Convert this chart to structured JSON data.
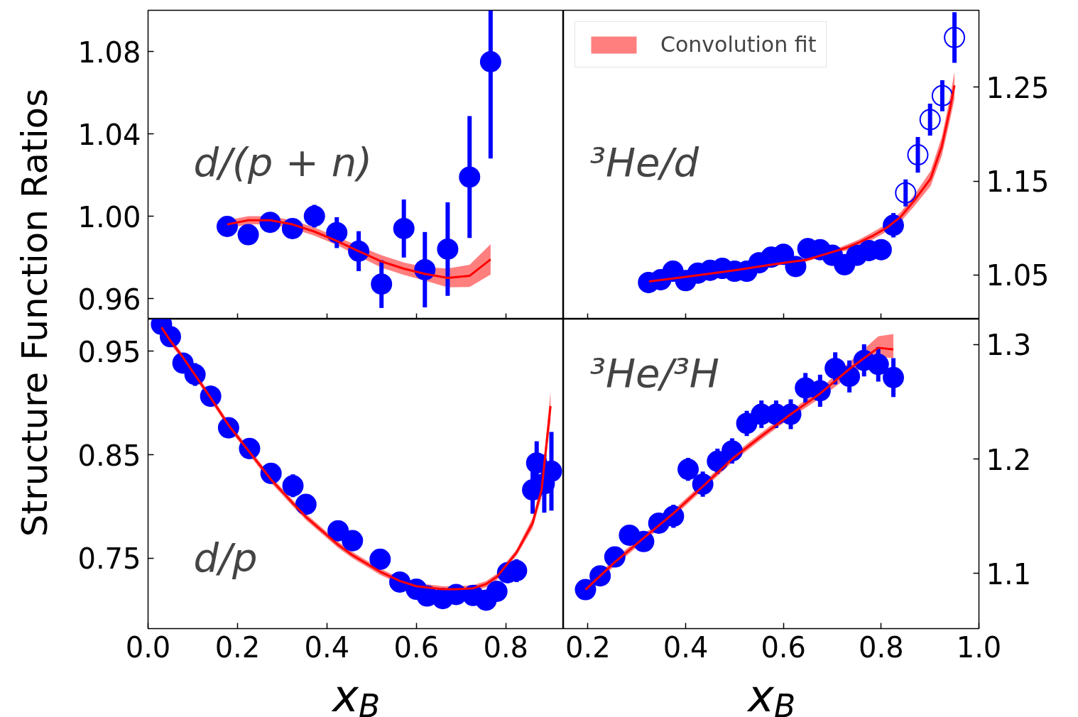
{
  "chart_data": [
    {
      "type": "scatter",
      "ylabel": "Structure Function Ratios",
      "annotations": [
        "d/(p + n)"
      ],
      "xlim": [
        0,
        0.929
      ],
      "ylim": [
        0.95,
        1.1
      ],
      "xticks": [
        0.2,
        0.4,
        0.6,
        0.8
      ],
      "yticks": [
        0.96,
        {
          "value": 1.0,
          "label": "1.00"
        },
        1.04,
        1.08
      ],
      "tick_labels": "y",
      "series": [
        {
          "type": "line",
          "color": "#ff0000",
          "x": [
            0.177,
            0.224,
            0.273,
            0.323,
            0.372,
            0.422,
            0.471,
            0.522,
            0.572,
            0.619,
            0.67,
            0.719,
            0.766
          ],
          "values": [
            0.996,
            0.998,
            0.998,
            0.996,
            0.9925,
            0.988,
            0.983,
            0.978,
            0.9745,
            0.972,
            0.97,
            0.971,
            0.979
          ],
          "lower": [
            0.994,
            0.996,
            0.996,
            0.994,
            0.9905,
            0.986,
            0.9805,
            0.975,
            0.9715,
            0.9687,
            0.9654,
            0.9656,
            0.9716
          ],
          "upper": [
            0.998,
            1.0,
            1.0,
            0.998,
            0.9945,
            0.99,
            0.9855,
            0.981,
            0.9775,
            0.9753,
            0.9746,
            0.9764,
            0.9864
          ]
        },
        {
          "type": "scatter",
          "color": "#0000ff",
          "marker": "circle",
          "x": [
            0.177,
            0.224,
            0.273,
            0.323,
            0.372,
            0.422,
            0.471,
            0.522,
            0.572,
            0.619,
            0.67,
            0.719,
            0.766
          ],
          "values": [
            0.995,
            0.991,
            0.997,
            0.994,
            1.0,
            0.992,
            0.983,
            0.967,
            0.994,
            0.974,
            0.984,
            1.019,
            1.075
          ],
          "errors": [
            0.002,
            0.002,
            0.002,
            0.0045,
            0.0055,
            0.0075,
            0.0097,
            0.0116,
            0.0141,
            0.0183,
            0.0227,
            0.0296,
            [
              1.028,
              1.1
            ]
          ]
        }
      ]
    },
    {
      "type": "scatter",
      "annotations": [
        "³He/d"
      ],
      "xlim": [
        0.15,
        1.0
      ],
      "y2lim": [
        1.003,
        1.332
      ],
      "xticks": [
        0.2,
        0.4,
        0.6,
        0.8
      ],
      "y2ticks": [
        1.05,
        1.15,
        1.25
      ],
      "tick_labels": "y",
      "legend": "top left",
      "series": [
        {
          "type": "line",
          "axis": "y2",
          "name": "Convolution fit",
          "color": "#ff0000",
          "x": [
            0.325,
            0.4,
            0.5,
            0.6,
            0.645,
            0.701,
            0.728,
            0.756,
            0.784,
            0.812,
            0.84,
            0.868,
            0.901,
            0.924,
            0.94,
            0.95
          ],
          "values": [
            1.043,
            1.048,
            1.055,
            1.063,
            1.066,
            1.0746,
            1.079,
            1.085,
            1.092,
            1.1006,
            1.112,
            1.1295,
            1.1526,
            1.187,
            1.225,
            1.252
          ],
          "lower": [
            1.041,
            1.046,
            1.053,
            1.061,
            1.064,
            1.0726,
            1.076,
            1.082,
            1.088,
            1.0966,
            1.107,
            1.1235,
            1.1446,
            1.177,
            1.213,
            1.2375
          ],
          "upper": [
            1.045,
            1.05,
            1.057,
            1.065,
            1.068,
            1.0766,
            1.082,
            1.088,
            1.096,
            1.1046,
            1.117,
            1.1355,
            1.1606,
            1.197,
            1.237,
            1.2665
          ]
        },
        {
          "type": "scatter",
          "axis": "y2",
          "color": "#0000ff",
          "marker": "circle",
          "x": [
            0.324,
            0.349,
            0.374,
            0.4,
            0.425,
            0.45,
            0.475,
            0.5,
            0.525,
            0.55,
            0.575,
            0.6,
            0.625,
            0.65,
            0.675,
            0.7,
            0.725,
            0.75,
            0.775,
            0.8,
            0.825
          ],
          "values": [
            1.042,
            1.045,
            1.054,
            1.044,
            1.052,
            1.055,
            1.057,
            1.054,
            1.054,
            1.063,
            1.069,
            1.072,
            1.059,
            1.078,
            1.077,
            1.071,
            1.061,
            1.071,
            1.076,
            1.077,
            1.103
          ],
          "errors": [
            0.011,
            0.011,
            0.011,
            0.011,
            0.011,
            0.011,
            0.011,
            0.011,
            0.011,
            0.011,
            0.011,
            0.011,
            0.011,
            0.011,
            0.011,
            0.011,
            0.011,
            0.011,
            0.011,
            0.011,
            0.013
          ]
        },
        {
          "type": "scatter",
          "axis": "y2",
          "color": "#0000ff",
          "marker": "circle_open",
          "x": [
            0.85,
            0.875,
            0.9,
            0.925,
            0.95
          ],
          "values": [
            1.1375,
            1.178,
            1.2155,
            1.241,
            1.303
          ],
          "errors": [
            0.0144,
            0.019,
            0.017,
            0.0165,
            0.027
          ]
        }
      ]
    },
    {
      "type": "scatter",
      "annotations": [
        "d/p"
      ],
      "xlabel": "x$_{B}$",
      "xlim": [
        0,
        0.929
      ],
      "ylim": [
        0.682,
        0.981
      ],
      "xticks": [
        {
          "value": 0,
          "label": "0.0"
        },
        0.2,
        0.4,
        0.6,
        0.8
      ],
      "yticks": [
        0.75,
        0.85,
        0.95
      ],
      "series": [
        {
          "type": "line",
          "color": "#ff0000",
          "x": [
            0.03,
            0.05,
            0.078,
            0.14,
            0.18,
            0.227,
            0.275,
            0.324,
            0.353,
            0.425,
            0.457,
            0.519,
            0.563,
            0.6,
            0.659,
            0.689,
            0.727,
            0.756,
            0.78,
            0.824,
            0.86,
            0.88,
            0.9
          ],
          "values": [
            0.973,
            0.96,
            0.944,
            0.905,
            0.8785,
            0.8525,
            0.826,
            0.803,
            0.79,
            0.763,
            0.753,
            0.737,
            0.728,
            0.723,
            0.72,
            0.72,
            0.721,
            0.725,
            0.732,
            0.7555,
            0.784,
            0.816,
            0.897
          ],
          "lower": [
            0.97,
            0.957,
            0.941,
            0.902,
            0.8755,
            0.8495,
            0.823,
            0.8,
            0.787,
            0.76,
            0.75,
            0.734,
            0.725,
            0.72,
            0.717,
            0.717,
            0.718,
            0.722,
            0.729,
            0.7525,
            0.779,
            0.809,
            0.883
          ],
          "upper": [
            0.976,
            0.963,
            0.947,
            0.908,
            0.8815,
            0.8555,
            0.829,
            0.806,
            0.793,
            0.766,
            0.756,
            0.74,
            0.731,
            0.726,
            0.723,
            0.723,
            0.724,
            0.728,
            0.735,
            0.7585,
            0.789,
            0.823,
            0.911
          ]
        },
        {
          "type": "scatter",
          "color": "#0000ff",
          "marker": "circle",
          "x": [
            0.03,
            0.05,
            0.078,
            0.105,
            0.14,
            0.18,
            0.227,
            0.275,
            0.324,
            0.353,
            0.425,
            0.457,
            0.519,
            0.563,
            0.6,
            0.624,
            0.659,
            0.689,
            0.727,
            0.756,
            0.78,
            0.804,
            0.824,
            0.86,
            0.869,
            0.886,
            0.902
          ],
          "values": [
            0.976,
            0.964,
            0.9385,
            0.9275,
            0.9065,
            0.876,
            0.856,
            0.832,
            0.82,
            0.802,
            0.7765,
            0.767,
            0.749,
            0.727,
            0.72,
            0.7135,
            0.711,
            0.715,
            0.714,
            0.7095,
            0.718,
            0.736,
            0.738,
            0.816,
            0.842,
            0.822,
            0.834
          ],
          "errors": [
            0.005,
            0.005,
            0.005,
            0.011,
            0.01,
            0.01,
            0.01,
            0.01,
            0.011,
            0.006,
            0.006,
            0.01,
            0.006,
            0.006,
            0.006,
            0.006,
            0.006,
            0.006,
            0.006,
            0.006,
            0.008,
            0.01,
            0.011,
            0.023,
            0.021,
            0.028,
            0.038
          ]
        }
      ]
    },
    {
      "type": "scatter",
      "annotations": [
        "³He/³H"
      ],
      "xlabel": "x$_{B}$",
      "xlim": [
        0.15,
        1.0
      ],
      "y2lim": [
        1.052,
        1.322
      ],
      "xticks": [
        0.2,
        0.4,
        0.6,
        0.8,
        {
          "value": 1.0,
          "label": "1.0"
        }
      ],
      "y2ticks": [
        1.1,
        1.2,
        1.3
      ],
      "series": [
        {
          "type": "line",
          "axis": "y2",
          "color": "#ff0000",
          "x": [
            0.195,
            0.255,
            0.314,
            0.375,
            0.435,
            0.495,
            0.555,
            0.615,
            0.675,
            0.735,
            0.794,
            0.825
          ],
          "values": [
            1.086,
            1.11,
            1.131,
            1.1525,
            1.176,
            1.2,
            1.22,
            1.239,
            1.257,
            1.2785,
            1.297,
            1.2955
          ],
          "lower": [
            1.083,
            1.107,
            1.128,
            1.1495,
            1.173,
            1.197,
            1.217,
            1.236,
            1.253,
            1.2725,
            1.289,
            1.288
          ],
          "upper": [
            1.089,
            1.113,
            1.134,
            1.1555,
            1.179,
            1.203,
            1.223,
            1.242,
            1.261,
            1.2845,
            1.307,
            1.309
          ]
        },
        {
          "type": "scatter",
          "axis": "y2",
          "color": "#0000ff",
          "marker": "circle",
          "x": [
            0.195,
            0.225,
            0.255,
            0.285,
            0.314,
            0.345,
            0.375,
            0.405,
            0.435,
            0.465,
            0.495,
            0.525,
            0.555,
            0.585,
            0.615,
            0.645,
            0.675,
            0.706,
            0.735,
            0.765,
            0.794,
            0.825
          ],
          "values": [
            1.086,
            1.098,
            1.1145,
            1.1335,
            1.128,
            1.144,
            1.15,
            1.191,
            1.178,
            1.198,
            1.207,
            1.231,
            1.239,
            1.239,
            1.239,
            1.262,
            1.2595,
            1.279,
            1.272,
            1.286,
            1.2825,
            1.271
          ],
          "errors": [
            0.004,
            0.004,
            0.004,
            0.004,
            0.004,
            0.006,
            0.01,
            0.01,
            0.011,
            0.011,
            0.011,
            0.011,
            0.012,
            0.012,
            0.013,
            0.013,
            0.014,
            0.014,
            0.014,
            0.014,
            0.015,
            0.017
          ]
        }
      ]
    }
  ]
}
